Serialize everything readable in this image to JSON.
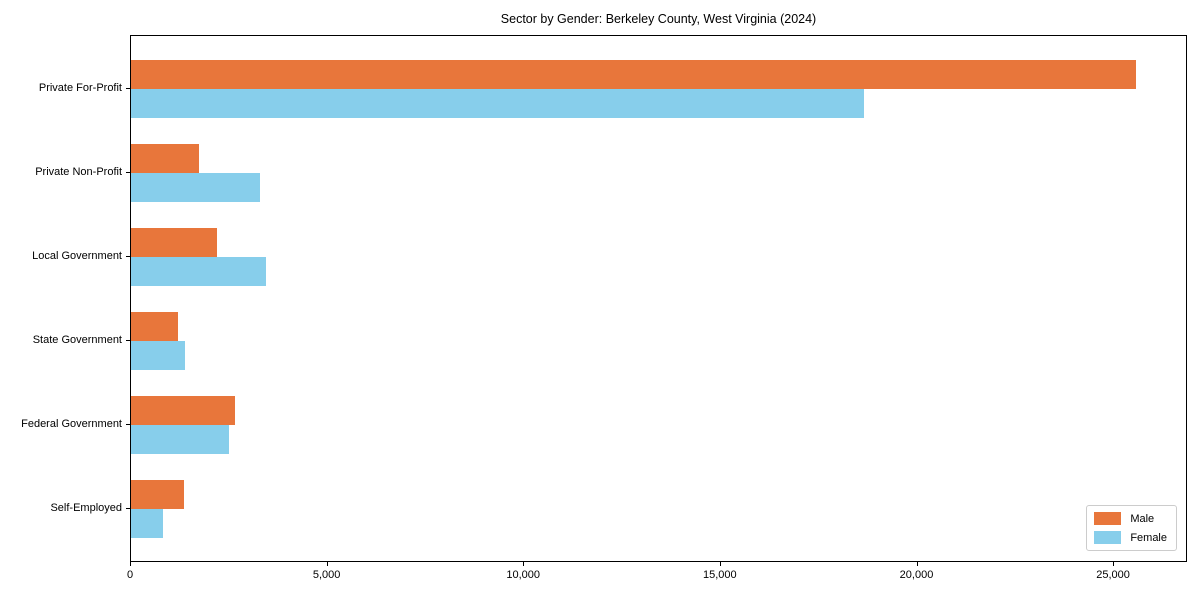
{
  "title": "Sector by Gender: Berkeley County, West Virginia (2024)",
  "chart_data": {
    "type": "bar",
    "orientation": "horizontal",
    "title": "Sector by Gender: Berkeley County, West Virginia (2024)",
    "categories": [
      "Private For-Profit",
      "Private Non-Profit",
      "Local Government",
      "State Government",
      "Federal Government",
      "Self-Employed"
    ],
    "series": [
      {
        "name": "Male",
        "color": "#E8763B",
        "values": [
          25560,
          1730,
          2190,
          1190,
          2650,
          1350
        ]
      },
      {
        "name": "Female",
        "color": "#87CEEB",
        "values": [
          18630,
          3290,
          3440,
          1380,
          2490,
          810
        ]
      }
    ],
    "xlabel": "",
    "ylabel": "",
    "xlim": [
      0,
      26880
    ],
    "xticks": [
      0,
      5000,
      10000,
      15000,
      20000,
      25000
    ],
    "xtick_labels": [
      "0",
      "5,000",
      "10,000",
      "15,000",
      "20,000",
      "25,000"
    ],
    "grid": false,
    "legend": {
      "position": "lower right",
      "entries": [
        "Male",
        "Female"
      ]
    },
    "colors": {
      "male": "#E8763B",
      "female": "#87CEEB",
      "spine": "#000000",
      "background": "#ffffff",
      "legend_border": "#cccccc"
    }
  }
}
